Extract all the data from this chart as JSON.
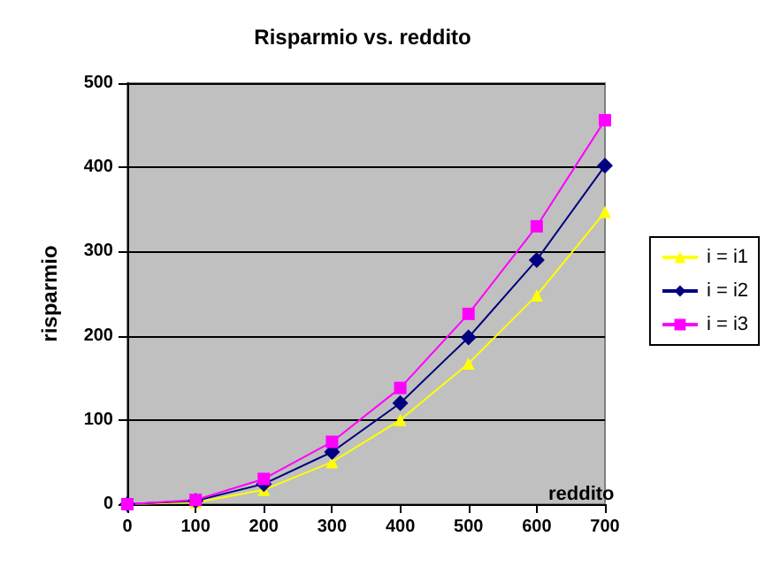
{
  "chart_data": {
    "type": "line",
    "title": "Risparmio vs. reddito",
    "xlabel": "reddito",
    "ylabel": "risparmio",
    "x": [
      0,
      100,
      200,
      300,
      400,
      500,
      600,
      700
    ],
    "series": [
      {
        "name": "i = i1",
        "color": "#ffff00",
        "marker": "triangle",
        "values": [
          0,
          2,
          17,
          50,
          100,
          167,
          248,
          347
        ]
      },
      {
        "name": "i = i2",
        "color": "#000080",
        "marker": "diamond",
        "values": [
          0,
          4,
          24,
          62,
          120,
          198,
          290,
          402
        ]
      },
      {
        "name": "i = i3",
        "color": "#ff00ff",
        "marker": "square",
        "values": [
          0,
          5,
          30,
          74,
          138,
          226,
          330,
          456
        ]
      }
    ],
    "xlim": [
      0,
      700
    ],
    "xticks": [
      0,
      100,
      200,
      300,
      400,
      500,
      600,
      700
    ],
    "ylim": [
      0,
      500
    ],
    "yticks": [
      0,
      100,
      200,
      300,
      400,
      500
    ],
    "grid": "y",
    "legend": "right"
  }
}
